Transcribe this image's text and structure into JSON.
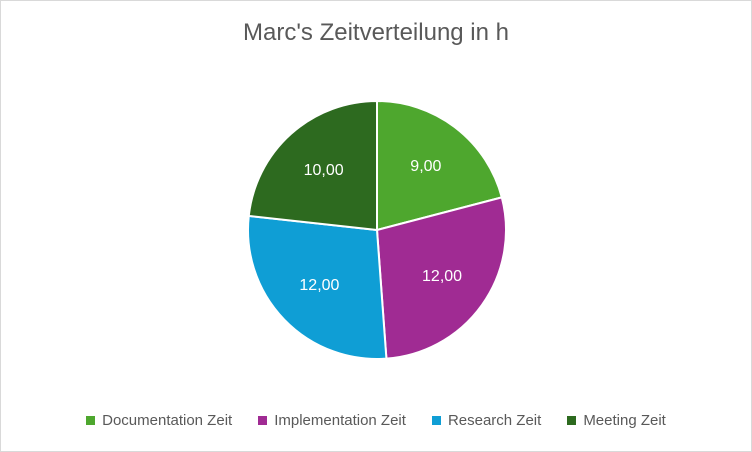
{
  "chart_data": {
    "type": "pie",
    "title": "Marc's Zeitverteilung in h",
    "categories": [
      "Documentation Zeit",
      "Implementation Zeit",
      "Research Zeit",
      "Meeting Zeit"
    ],
    "values": [
      9,
      12,
      12,
      10
    ],
    "data_labels": [
      "9,00",
      "12,00",
      "12,00",
      "10,00"
    ],
    "colors": [
      "#4ea72e",
      "#a02b93",
      "#0f9ed5",
      "#2d6a1f"
    ],
    "legend_position": "bottom"
  }
}
